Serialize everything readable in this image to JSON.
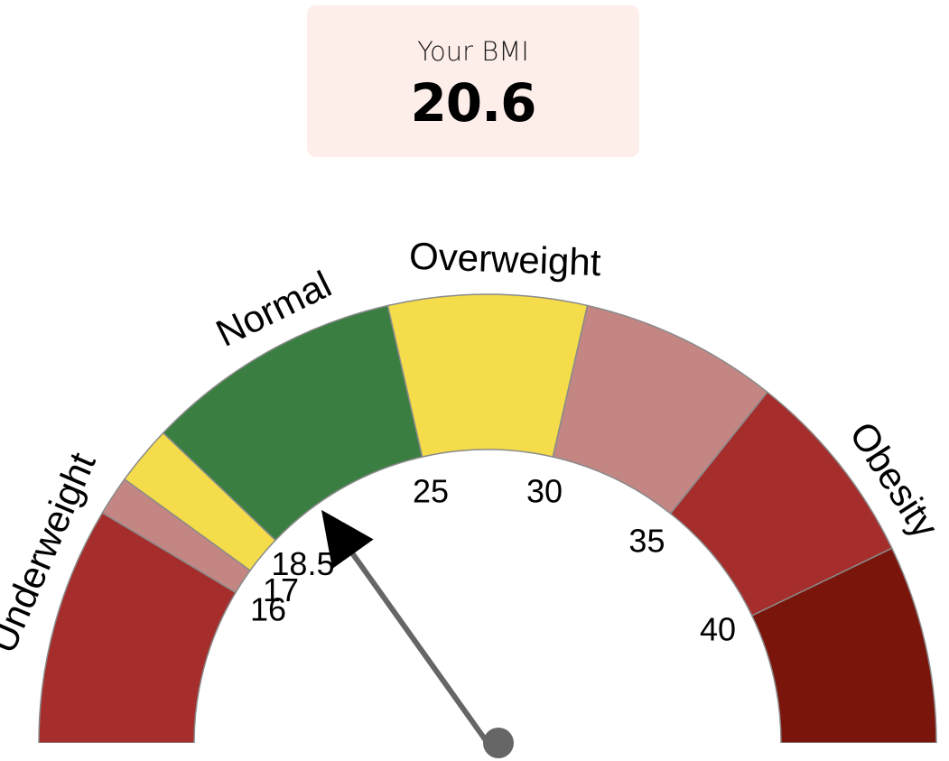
{
  "result": {
    "label": "Your BMI",
    "value": "20.6",
    "card_color": "#fdeeea"
  },
  "chart_data": {
    "type": "gauge",
    "value": 20.6,
    "segments": [
      {
        "from": 10,
        "to": 16,
        "color": "#a52d2b"
      },
      {
        "from": 16,
        "to": 17,
        "color": "#c38683"
      },
      {
        "from": 17,
        "to": 18.5,
        "color": "#f4dc4a"
      },
      {
        "from": 18.5,
        "to": 25,
        "color": "#3a7f41"
      },
      {
        "from": 25,
        "to": 30,
        "color": "#f4dc4a"
      },
      {
        "from": 30,
        "to": 35,
        "color": "#c38683"
      },
      {
        "from": 35,
        "to": 40,
        "color": "#a52d2b"
      },
      {
        "from": 40,
        "to": 45,
        "color": "#7a150c"
      }
    ],
    "tick_labels": [
      {
        "value": 16,
        "text": "16"
      },
      {
        "value": 17,
        "text": "17"
      },
      {
        "value": 18.5,
        "text": "18.5"
      },
      {
        "value": 25,
        "text": "25"
      },
      {
        "value": 30,
        "text": "30"
      },
      {
        "value": 35,
        "text": "35"
      },
      {
        "value": 40,
        "text": "40"
      }
    ],
    "band_labels": [
      {
        "text": "Underweight",
        "value": 14.5
      },
      {
        "text": "Normal",
        "value": 22.4
      },
      {
        "text": "Overweight",
        "value": 27.9
      },
      {
        "text": "Obesity",
        "value": 38.6
      }
    ],
    "needle_color": "#666666",
    "arrow_color": "#000000"
  }
}
